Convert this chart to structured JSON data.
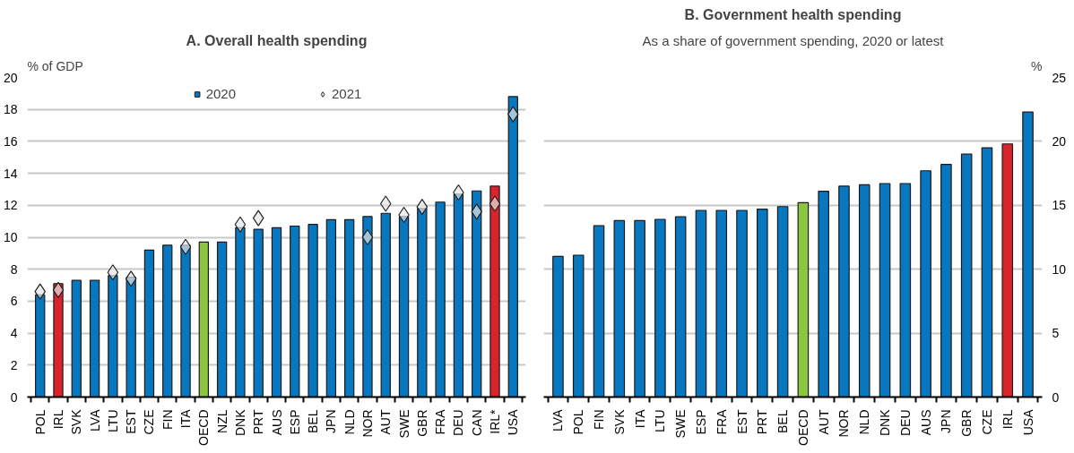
{
  "chart_data": [
    {
      "type": "bar",
      "title": "A. Overall health spending",
      "ylabel": "% of GDP",
      "categories": [
        "POL",
        "IRL",
        "SVK",
        "LVA",
        "LTU",
        "EST",
        "CZE",
        "FIN",
        "ITA",
        "OECD",
        "NZL",
        "DNK",
        "PRT",
        "AUS",
        "ESP",
        "BEL",
        "JPN",
        "NLD",
        "NOR",
        "AUT",
        "SWE",
        "GBR",
        "FRA",
        "DEU",
        "CAN",
        "IRL*",
        "USA"
      ],
      "series": [
        {
          "name": "2020",
          "color": "#0777bf",
          "colors": [
            "#0777bf",
            "#d9232d",
            "#0777bf",
            "#0777bf",
            "#0777bf",
            "#0777bf",
            "#0777bf",
            "#0777bf",
            "#0777bf",
            "#8cc63f",
            "#0777bf",
            "#0777bf",
            "#0777bf",
            "#0777bf",
            "#0777bf",
            "#0777bf",
            "#0777bf",
            "#0777bf",
            "#0777bf",
            "#0777bf",
            "#0777bf",
            "#0777bf",
            "#0777bf",
            "#0777bf",
            "#0777bf",
            "#d9232d",
            "#0777bf"
          ],
          "values": [
            6.4,
            7.1,
            7.3,
            7.3,
            7.6,
            7.5,
            9.2,
            9.5,
            9.5,
            9.7,
            9.7,
            10.6,
            10.5,
            10.6,
            10.7,
            10.8,
            11.1,
            11.1,
            11.3,
            11.5,
            11.3,
            11.8,
            12.2,
            12.7,
            12.9,
            13.2,
            18.8
          ]
        },
        {
          "name": "2021",
          "type": "scatter",
          "marker": "diamond",
          "color": "#e6e6e6",
          "values": [
            6.6,
            6.7,
            null,
            null,
            7.8,
            7.4,
            null,
            null,
            9.4,
            null,
            null,
            10.8,
            11.2,
            null,
            null,
            null,
            null,
            null,
            10.0,
            12.1,
            11.4,
            11.9,
            null,
            12.8,
            11.6,
            12.1,
            17.7
          ]
        }
      ],
      "ylim": [
        0,
        20
      ],
      "yticks": [
        0,
        2,
        4,
        6,
        8,
        10,
        12,
        14,
        16,
        18,
        20
      ],
      "grid": "y",
      "legend": "top"
    },
    {
      "type": "bar",
      "title": "B. Government health spending",
      "subtitle": "As a share of government spending, 2020 or latest",
      "y2label": "%",
      "categories": [
        "LVA",
        "POL",
        "FIN",
        "SVK",
        "ITA",
        "LTU",
        "SWE",
        "ESP",
        "FRA",
        "EST",
        "PRT",
        "BEL",
        "OECD",
        "AUT",
        "NOR",
        "NLD",
        "DNK",
        "DEU",
        "AUS",
        "JPN",
        "GBR",
        "CZE",
        "IRL",
        "USA"
      ],
      "series": [
        {
          "axis": "y2",
          "color": "#0777bf",
          "colors": [
            "#0777bf",
            "#0777bf",
            "#0777bf",
            "#0777bf",
            "#0777bf",
            "#0777bf",
            "#0777bf",
            "#0777bf",
            "#0777bf",
            "#0777bf",
            "#0777bf",
            "#0777bf",
            "#8cc63f",
            "#0777bf",
            "#0777bf",
            "#0777bf",
            "#0777bf",
            "#0777bf",
            "#0777bf",
            "#0777bf",
            "#0777bf",
            "#0777bf",
            "#d9232d",
            "#0777bf"
          ],
          "values": [
            11.0,
            11.1,
            13.4,
            13.8,
            13.8,
            13.9,
            14.1,
            14.6,
            14.6,
            14.6,
            14.7,
            14.9,
            15.2,
            16.1,
            16.5,
            16.6,
            16.7,
            16.7,
            17.7,
            18.2,
            19.0,
            19.5,
            19.8,
            22.3
          ]
        }
      ],
      "y2lim": [
        0,
        25
      ],
      "y2ticks": [
        0,
        5,
        10,
        15,
        20,
        25
      ],
      "grid": "y"
    }
  ]
}
